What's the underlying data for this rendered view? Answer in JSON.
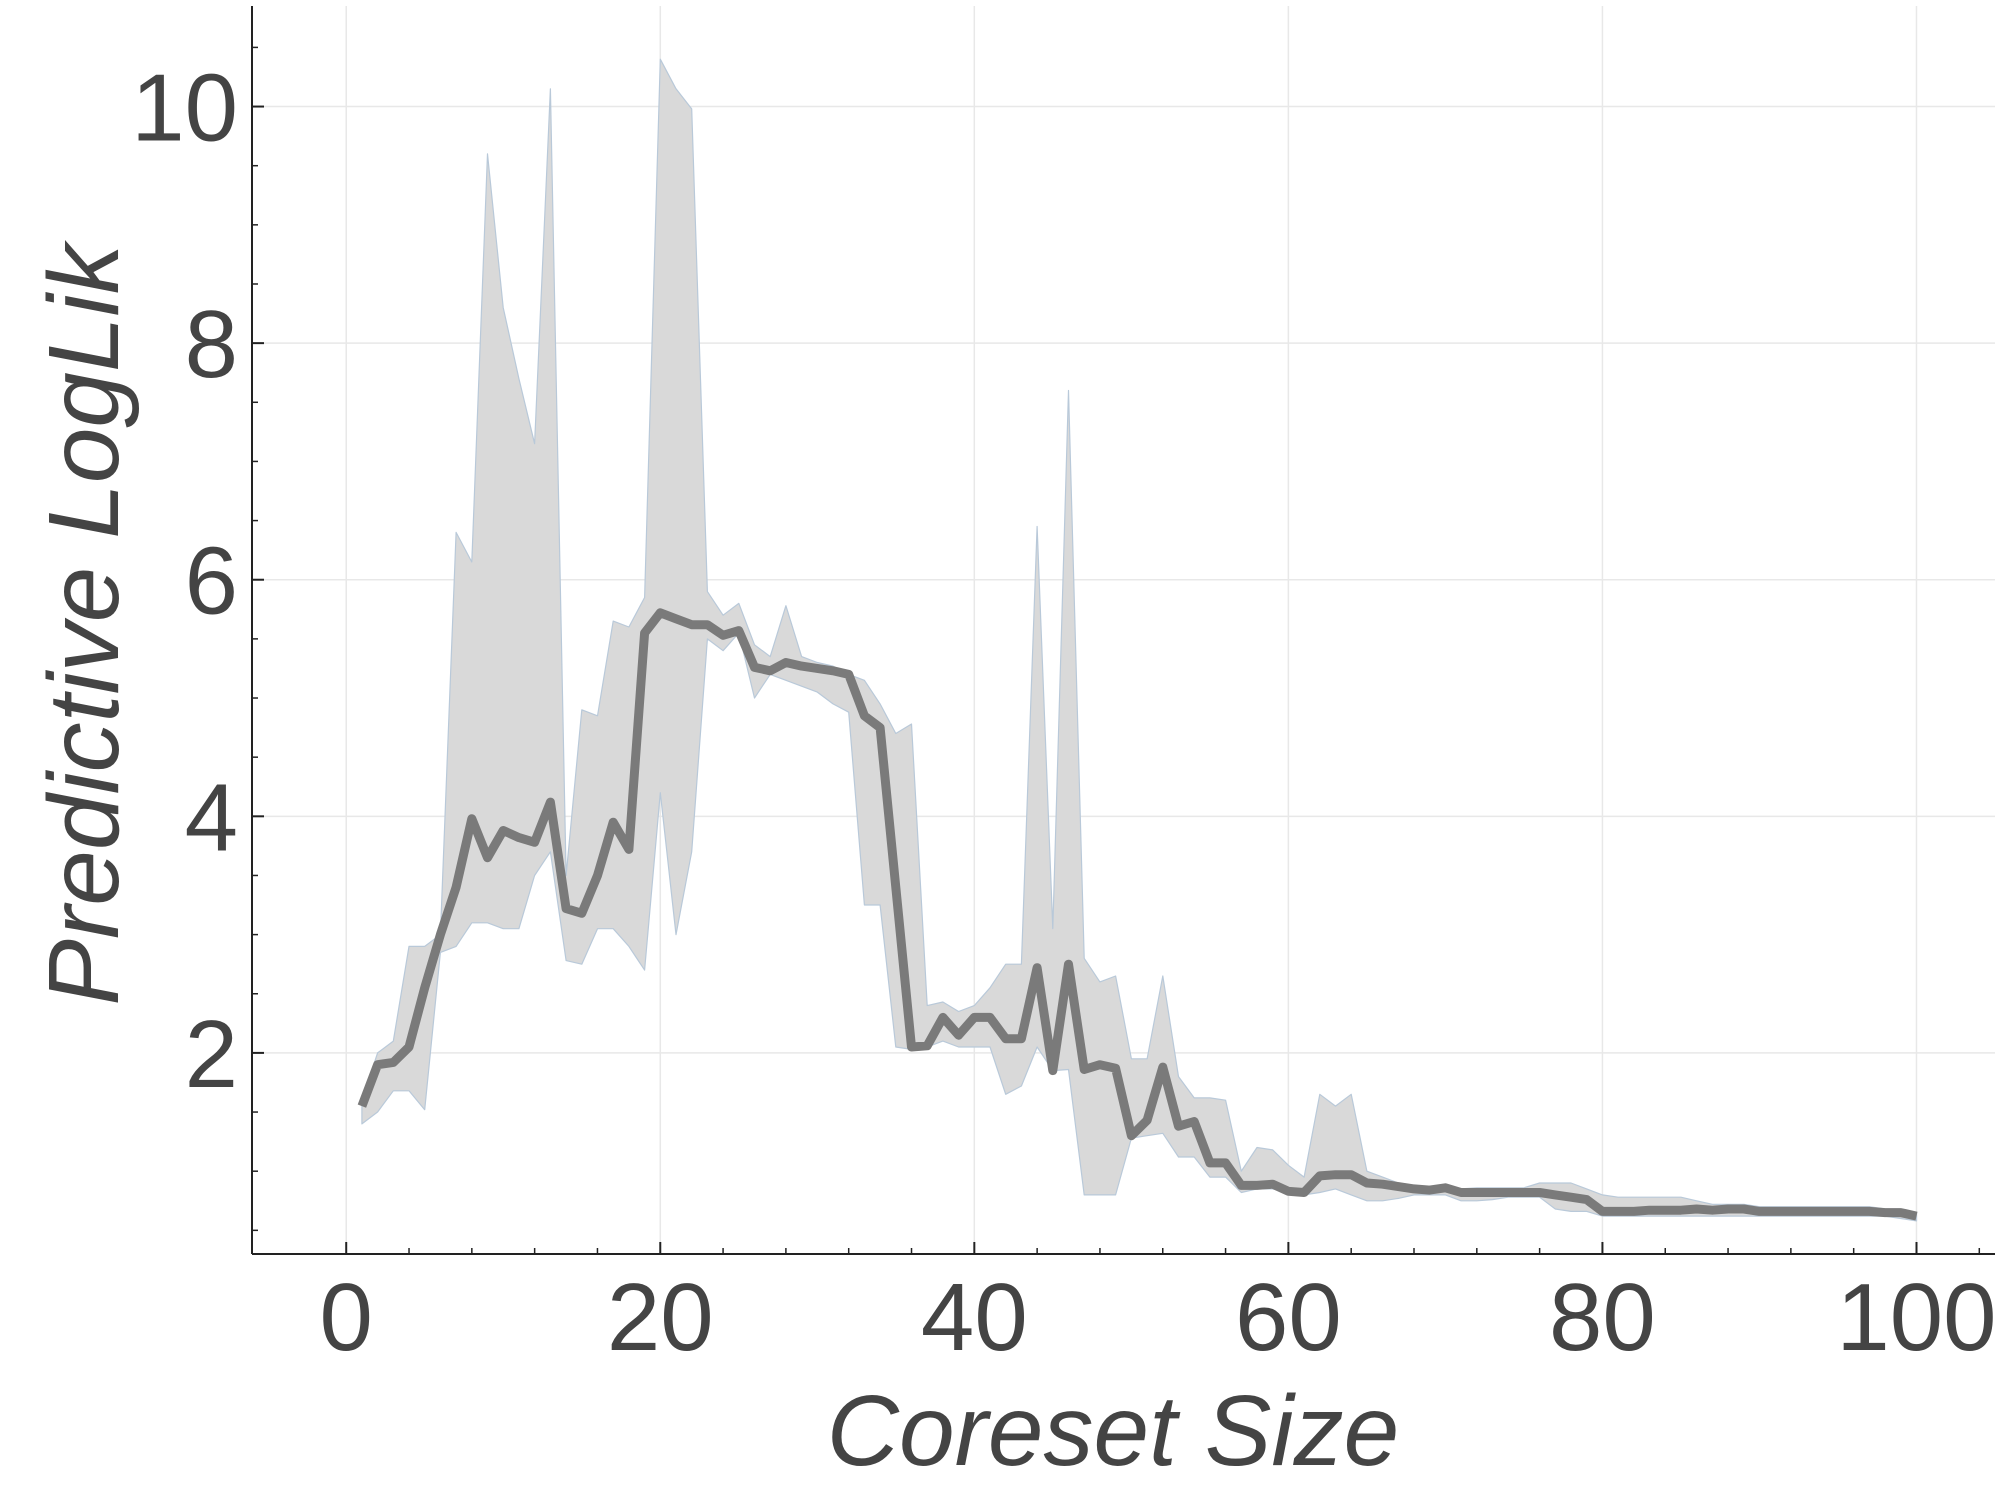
{
  "chart_data": {
    "type": "line",
    "title": "",
    "xlabel": "Coreset Size",
    "ylabel": "Predictive LogLik",
    "xlim": [
      -6,
      105
    ],
    "ylim": [
      0.3,
      10.85
    ],
    "xticks": [
      0,
      20,
      40,
      60,
      80,
      100
    ],
    "xtick_labels": [
      "0",
      "20",
      "40",
      "60",
      "80",
      "100"
    ],
    "yticks": [
      2,
      4,
      6,
      8,
      10
    ],
    "ytick_labels": [
      "2",
      "4",
      "6",
      "8",
      "10"
    ],
    "grid": true,
    "legend": "none",
    "colors": {
      "line": "#7a7a7a",
      "band": "#d9d9d9",
      "band_edge": "#b9c9d9",
      "axis": "#222222",
      "text": "#444444",
      "grid": "#e8e8e8"
    },
    "series": [
      {
        "x": [
          1,
          2,
          3,
          4,
          5,
          6,
          7,
          8,
          9,
          10,
          11,
          12,
          13,
          14,
          15,
          16,
          17,
          18,
          19,
          20,
          21,
          22,
          23,
          24,
          25,
          26,
          27,
          28,
          29,
          30,
          31,
          32,
          33,
          34,
          35,
          36,
          37,
          38,
          39,
          40,
          41,
          42,
          43,
          44,
          45,
          46,
          47,
          48,
          49,
          50,
          51,
          52,
          53,
          54,
          55,
          56,
          57,
          58,
          59,
          60,
          61,
          62,
          63,
          64,
          65,
          66,
          67,
          68,
          69,
          70,
          71,
          72,
          73,
          74,
          75,
          76,
          77,
          78,
          79,
          80,
          81,
          82,
          83,
          84,
          85,
          86,
          87,
          88,
          89,
          90,
          91,
          92,
          93,
          94,
          95,
          96,
          97,
          98,
          99,
          100
        ],
        "y": [
          1.55,
          1.9,
          1.92,
          2.05,
          2.55,
          3.0,
          3.4,
          3.98,
          3.65,
          3.88,
          3.82,
          3.78,
          4.12,
          3.22,
          3.18,
          3.5,
          3.95,
          3.72,
          5.55,
          5.72,
          5.67,
          5.62,
          5.62,
          5.53,
          5.57,
          5.26,
          5.23,
          5.3,
          5.27,
          5.25,
          5.23,
          5.2,
          4.85,
          4.75,
          3.4,
          2.05,
          2.06,
          2.3,
          2.15,
          2.3,
          2.3,
          2.12,
          2.12,
          2.72,
          1.85,
          2.75,
          1.86,
          1.9,
          1.87,
          1.3,
          1.43,
          1.88,
          1.38,
          1.42,
          1.07,
          1.07,
          0.88,
          0.88,
          0.89,
          0.83,
          0.82,
          0.96,
          0.97,
          0.97,
          0.9,
          0.89,
          0.87,
          0.85,
          0.84,
          0.86,
          0.82,
          0.82,
          0.82,
          0.82,
          0.82,
          0.82,
          0.8,
          0.78,
          0.76,
          0.66,
          0.66,
          0.66,
          0.67,
          0.67,
          0.67,
          0.68,
          0.67,
          0.68,
          0.68,
          0.66,
          0.66,
          0.66,
          0.66,
          0.66,
          0.66,
          0.66,
          0.66,
          0.65,
          0.65,
          0.62
        ],
        "upper": [
          1.6,
          2.0,
          2.1,
          2.9,
          2.9,
          3.0,
          6.4,
          6.15,
          9.6,
          8.3,
          7.7,
          7.15,
          10.15,
          3.5,
          4.9,
          4.85,
          5.65,
          5.6,
          5.85,
          10.4,
          10.15,
          9.98,
          5.9,
          5.7,
          5.8,
          5.45,
          5.35,
          5.78,
          5.35,
          5.3,
          5.27,
          5.2,
          5.15,
          4.95,
          4.7,
          4.78,
          2.4,
          2.43,
          2.35,
          2.4,
          2.55,
          2.75,
          2.75,
          6.45,
          3.05,
          7.6,
          2.8,
          2.6,
          2.65,
          1.95,
          1.95,
          2.65,
          1.8,
          1.62,
          1.62,
          1.6,
          1.0,
          1.2,
          1.18,
          1.05,
          0.95,
          1.65,
          1.55,
          1.65,
          1.0,
          0.95,
          0.9,
          0.88,
          0.87,
          0.88,
          0.85,
          0.86,
          0.86,
          0.86,
          0.86,
          0.9,
          0.9,
          0.9,
          0.85,
          0.8,
          0.78,
          0.78,
          0.78,
          0.78,
          0.78,
          0.75,
          0.72,
          0.72,
          0.72,
          0.7,
          0.7,
          0.7,
          0.7,
          0.7,
          0.7,
          0.7,
          0.7,
          0.68,
          0.68,
          0.65
        ],
        "lower": [
          1.4,
          1.5,
          1.68,
          1.68,
          1.52,
          2.85,
          2.9,
          3.1,
          3.1,
          3.05,
          3.05,
          3.5,
          3.7,
          2.78,
          2.75,
          3.05,
          3.05,
          2.9,
          2.7,
          4.2,
          3.0,
          3.7,
          5.5,
          5.4,
          5.55,
          5.0,
          5.2,
          5.15,
          5.1,
          5.05,
          4.95,
          4.88,
          3.25,
          3.25,
          2.05,
          2.03,
          2.05,
          2.1,
          2.05,
          2.05,
          2.05,
          1.65,
          1.72,
          2.05,
          1.85,
          1.86,
          0.8,
          0.8,
          0.8,
          1.28,
          1.3,
          1.32,
          1.12,
          1.12,
          0.95,
          0.95,
          0.82,
          0.85,
          0.85,
          0.82,
          0.8,
          0.82,
          0.85,
          0.8,
          0.75,
          0.75,
          0.77,
          0.8,
          0.8,
          0.8,
          0.75,
          0.75,
          0.76,
          0.78,
          0.78,
          0.78,
          0.68,
          0.66,
          0.66,
          0.62,
          0.62,
          0.62,
          0.62,
          0.62,
          0.62,
          0.62,
          0.62,
          0.62,
          0.62,
          0.62,
          0.62,
          0.62,
          0.62,
          0.62,
          0.62,
          0.62,
          0.62,
          0.62,
          0.6,
          0.58
        ]
      }
    ]
  }
}
